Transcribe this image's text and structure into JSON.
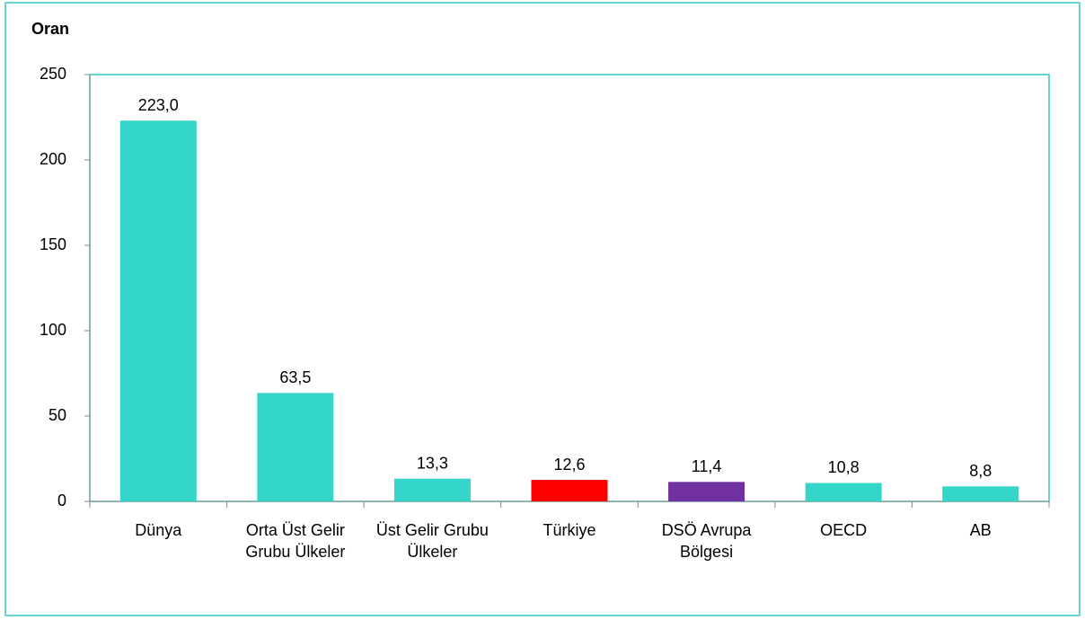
{
  "chart_data": {
    "type": "bar",
    "y_axis_label": "Oran",
    "categories": [
      "Dünya",
      "Orta Üst Gelir Grubu Ülkeler",
      "Üst Gelir Grubu Ülkeler",
      "Türkiye",
      "DSÖ Avrupa Bölgesi",
      "OECD",
      "AB"
    ],
    "values": [
      223.0,
      63.5,
      13.3,
      12.6,
      11.4,
      10.8,
      8.8
    ],
    "value_labels": [
      "223,0",
      "63,5",
      "13,3",
      "12,6",
      "11,4",
      "10,8",
      "8,8"
    ],
    "colors": [
      "#33d6c8",
      "#33d6c8",
      "#33d6c8",
      "#ff0000",
      "#7030a0",
      "#33d6c8",
      "#33d6c8"
    ],
    "ylim": [
      0,
      250
    ],
    "yticks": [
      0,
      50,
      100,
      150,
      200,
      250
    ],
    "grid": false
  }
}
